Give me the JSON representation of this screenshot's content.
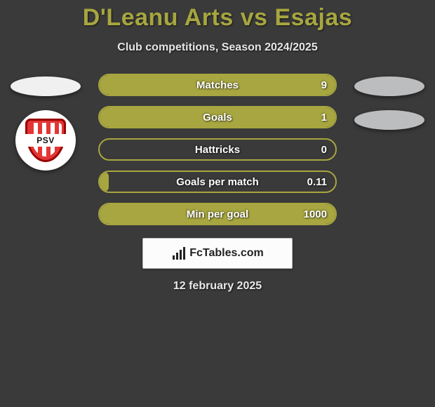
{
  "title": "D'Leanu Arts vs Esajas",
  "subtitle": "Club competitions, Season 2024/2025",
  "date": "12 february 2025",
  "footer": {
    "label": "FcTables.com"
  },
  "left": {
    "club_badge_text": "PSV",
    "club_colors": {
      "primary": "#e43535",
      "stripe": "#ffffff",
      "border": "#900000"
    }
  },
  "colors": {
    "background": "#3a3a3a",
    "accent": "#a7a640",
    "bar_border": "#a7a640",
    "bar_fill": "#a7a640",
    "text": "#ffffff"
  },
  "stats": [
    {
      "label": "Matches",
      "value": "9",
      "fill_pct": 100
    },
    {
      "label": "Goals",
      "value": "1",
      "fill_pct": 100
    },
    {
      "label": "Hattricks",
      "value": "0",
      "fill_pct": 0
    },
    {
      "label": "Goals per match",
      "value": "0.11",
      "fill_pct": 4
    },
    {
      "label": "Min per goal",
      "value": "1000",
      "fill_pct": 100
    }
  ]
}
